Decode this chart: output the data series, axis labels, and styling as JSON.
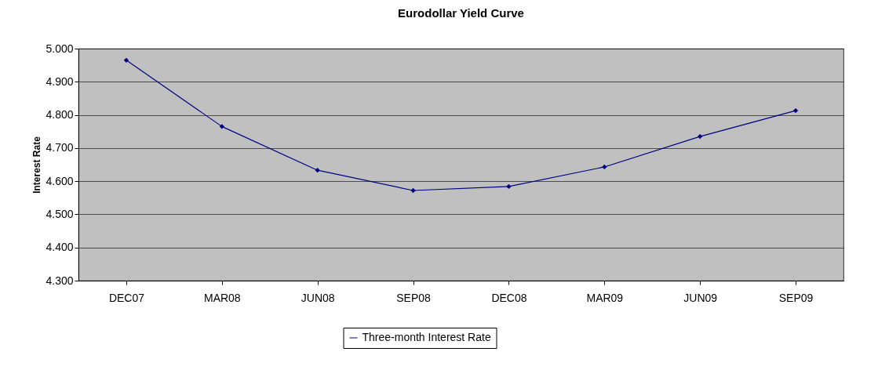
{
  "chart_data": {
    "type": "line",
    "title": "Eurodollar Yield Curve",
    "ylabel": "Interest Rate",
    "categories": [
      "DEC07",
      "MAR08",
      "JUN08",
      "SEP08",
      "DEC08",
      "MAR09",
      "JUN09",
      "SEP09"
    ],
    "series": [
      {
        "name": "Three-month Interest Rate",
        "color": "#000080",
        "values": [
          4.965,
          4.765,
          4.633,
          4.572,
          4.584,
          4.643,
          4.735,
          4.813
        ]
      }
    ],
    "ylim": [
      4.3,
      5.0
    ],
    "yticks": [
      {
        "value": 4.3,
        "label": "4.300"
      },
      {
        "value": 4.4,
        "label": "4.400"
      },
      {
        "value": 4.5,
        "label": "4.500"
      },
      {
        "value": 4.6,
        "label": "4.600"
      },
      {
        "value": 4.7,
        "label": "4.700"
      },
      {
        "value": 4.8,
        "label": "4.800"
      },
      {
        "value": 4.9,
        "label": "4.900"
      },
      {
        "value": 5.0,
        "label": "5.000"
      }
    ],
    "grid": "y",
    "legend": "bottom",
    "marker": "diamond",
    "line_style": "solid"
  }
}
